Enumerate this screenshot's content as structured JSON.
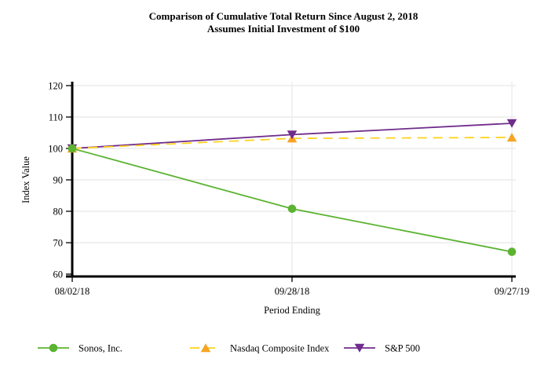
{
  "chart_data": {
    "type": "line",
    "title": "Comparison of Cumulative Total Return Since August 2, 2018",
    "subtitle": "Assumes Initial Investment of $100",
    "xlabel": "Period Ending",
    "ylabel": "Index Value",
    "categories": [
      "08/02/18",
      "09/28/18",
      "09/27/19"
    ],
    "ylim": [
      60,
      120
    ],
    "ytick_interval": 10,
    "grid": true,
    "legend_position": "bottom",
    "axis_color": "#000000",
    "grid_color": "#ececec",
    "series": [
      {
        "name": "Sonos, Inc.",
        "values": [
          100,
          80.8,
          67.1
        ],
        "line_color": "#5bb331",
        "marker_color": "#5bb331",
        "marker": "circle",
        "line_style": "solid"
      },
      {
        "name": "Nasdaq Composite Index",
        "values": [
          100,
          103.2,
          103.5
        ],
        "line_color": "#ffd21f",
        "marker_color": "#f6a425",
        "marker": "triangle-up",
        "line_style": "dashed"
      },
      {
        "name": "S&P 500",
        "values": [
          100,
          104.4,
          108.0
        ],
        "line_color": "#702c8c",
        "marker_color": "#702c8c",
        "marker": "triangle-down",
        "line_style": "solid"
      }
    ]
  }
}
